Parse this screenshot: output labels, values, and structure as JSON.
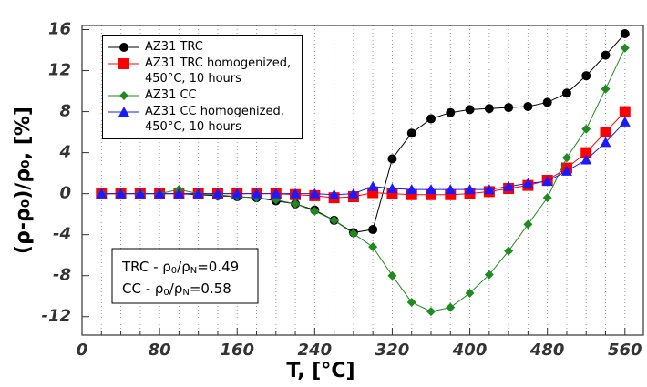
{
  "chart_data": {
    "type": "line",
    "xlabel": "T, [°C]",
    "ylabel": "(ρ-ρ₀)/ρ₀, [%]",
    "x": [
      20,
      40,
      60,
      80,
      100,
      120,
      140,
      160,
      180,
      200,
      220,
      240,
      260,
      280,
      300,
      320,
      340,
      360,
      380,
      400,
      420,
      440,
      460,
      480,
      500,
      520,
      540,
      560
    ],
    "series": [
      {
        "name": "AZ31 TRC",
        "color": "#000000",
        "marker": "circle",
        "values": [
          0,
          0,
          0,
          0,
          0,
          -0.1,
          -0.2,
          -0.3,
          -0.4,
          -0.7,
          -1.0,
          -1.6,
          -2.6,
          -3.8,
          -3.5,
          3.4,
          5.9,
          7.3,
          7.9,
          8.2,
          8.3,
          8.4,
          8.5,
          8.9,
          9.8,
          11.5,
          13.5,
          15.6
        ]
      },
      {
        "name": "AZ31 TRC homogenized,\n450°C, 10 hours",
        "color": "#ff0000",
        "marker": "square",
        "values": [
          0,
          0,
          0,
          0,
          0,
          0,
          0,
          0,
          0,
          0,
          -0.1,
          -0.2,
          -0.4,
          -0.3,
          0.1,
          0,
          -0.1,
          -0.1,
          -0.1,
          0,
          0.2,
          0.5,
          0.8,
          1.3,
          2.5,
          4.0,
          6.0,
          8.0
        ]
      },
      {
        "name": "AZ31 CC",
        "color": "#1f8a1f",
        "marker": "diamond",
        "values": [
          0,
          0,
          0,
          0,
          0.4,
          0,
          -0.1,
          -0.3,
          -0.4,
          -0.6,
          -1.0,
          -1.7,
          -2.6,
          -3.9,
          -5.2,
          -8.0,
          -10.6,
          -11.5,
          -11.1,
          -9.7,
          -7.9,
          -5.6,
          -3.0,
          -0.4,
          3.5,
          6.3,
          10.2,
          14.2
        ]
      },
      {
        "name": "AZ31 CC homogenized,\n450°C, 10 hours",
        "color": "#1a1aff",
        "marker": "triangle",
        "values": [
          0,
          0,
          0,
          0,
          0,
          0,
          0,
          0,
          0,
          0,
          0,
          0,
          -0.1,
          0,
          0.7,
          0.5,
          0.4,
          0.4,
          0.4,
          0.4,
          0.4,
          0.7,
          1.0,
          1.2,
          2.2,
          3.3,
          5.0,
          7.0
        ]
      }
    ],
    "annotations": [
      [
        "TRC - ρ",
        "0",
        "/ρ",
        "N",
        "=0.49"
      ],
      [
        "CC - ρ",
        "0",
        "/ρ",
        "N",
        "=0.58"
      ]
    ],
    "xlim": [
      0,
      579
    ],
    "ylim": [
      -13.8,
      16.4
    ],
    "xticks": [
      0,
      80,
      160,
      240,
      320,
      400,
      480,
      560
    ],
    "xminorticks": [
      20,
      40,
      60,
      100,
      120,
      140,
      180,
      200,
      220,
      260,
      280,
      300,
      340,
      360,
      380,
      420,
      440,
      460,
      500,
      520,
      540
    ],
    "yticks": [
      -12,
      -8,
      -4,
      0,
      4,
      8,
      12,
      16
    ],
    "legend": "upper left",
    "grid": true
  }
}
